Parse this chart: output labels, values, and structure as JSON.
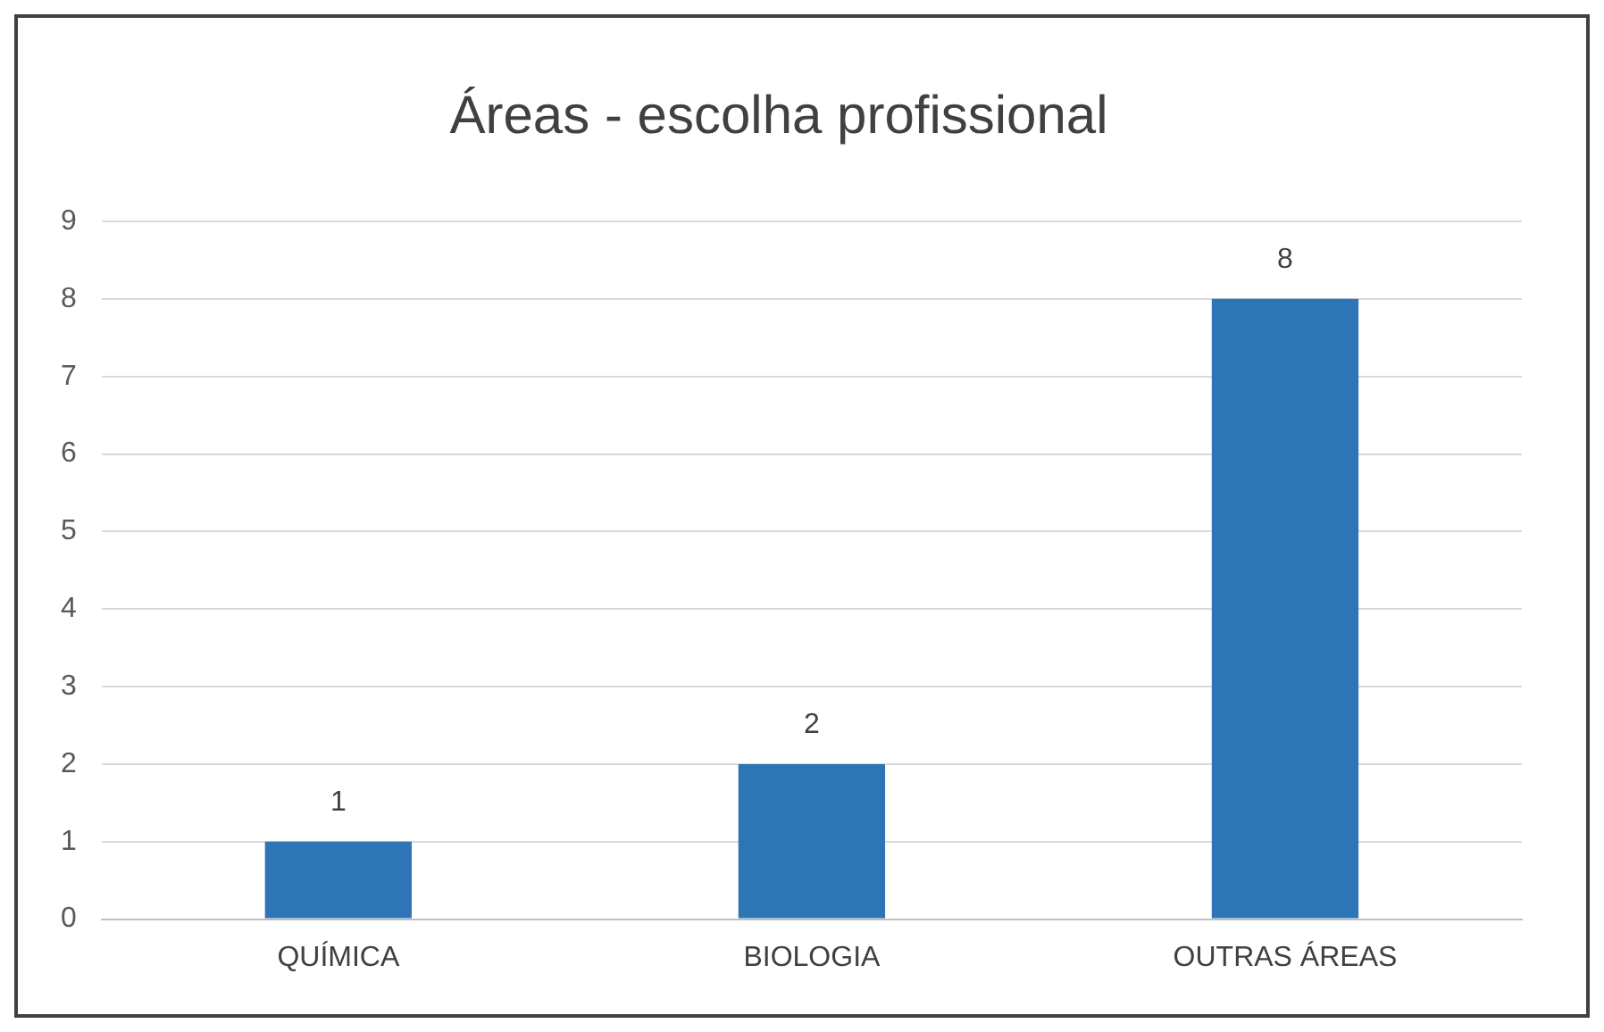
{
  "chart_data": {
    "type": "bar",
    "title": "Áreas - escolha profissional",
    "categories": [
      "QUÍMICA",
      "BIOLOGIA",
      "OUTRAS ÁREAS"
    ],
    "values": [
      1,
      2,
      8
    ],
    "color": "#2e75b6",
    "ylim": [
      0,
      9
    ],
    "yticks": [
      0,
      1,
      2,
      3,
      4,
      5,
      6,
      7,
      8,
      9
    ],
    "grid": "y",
    "data_labels": true
  }
}
